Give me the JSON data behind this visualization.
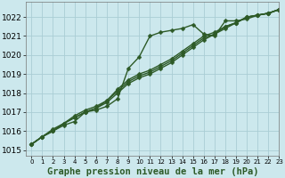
{
  "title": "Graphe pression niveau de la mer (hPa)",
  "background_color": "#cce8ed",
  "line_color": "#2d5a27",
  "grid_color": "#aacdd4",
  "xlim": [
    -0.5,
    23
  ],
  "ylim": [
    1014.7,
    1022.8
  ],
  "yticks": [
    1015,
    1016,
    1017,
    1018,
    1019,
    1020,
    1021,
    1022
  ],
  "xticks": [
    0,
    1,
    2,
    3,
    4,
    5,
    6,
    7,
    8,
    9,
    10,
    11,
    12,
    13,
    14,
    15,
    16,
    17,
    18,
    19,
    20,
    21,
    22,
    23
  ],
  "series": [
    [
      1015.3,
      1015.7,
      1016.0,
      1016.3,
      1016.5,
      1017.0,
      1017.1,
      1017.3,
      1017.7,
      1019.3,
      1019.9,
      1021.0,
      1021.2,
      1021.3,
      1021.4,
      1021.6,
      1021.1,
      1021.0,
      1021.8,
      1021.8,
      1021.9,
      1022.1,
      1022.2,
      1022.4
    ],
    [
      1015.3,
      1015.7,
      1016.0,
      1016.4,
      1016.7,
      1017.0,
      1017.2,
      1017.5,
      1018.0,
      1018.5,
      1018.8,
      1019.0,
      1019.3,
      1019.6,
      1020.0,
      1020.4,
      1020.8,
      1021.1,
      1021.4,
      1021.7,
      1022.0,
      1022.1,
      1022.2,
      1022.4
    ],
    [
      1015.3,
      1015.7,
      1016.0,
      1016.4,
      1016.7,
      1017.0,
      1017.2,
      1017.6,
      1018.1,
      1018.6,
      1018.9,
      1019.1,
      1019.4,
      1019.7,
      1020.1,
      1020.5,
      1020.9,
      1021.1,
      1021.5,
      1021.7,
      1022.0,
      1022.1,
      1022.2,
      1022.4
    ],
    [
      1015.3,
      1015.7,
      1016.1,
      1016.4,
      1016.8,
      1017.1,
      1017.3,
      1017.6,
      1018.2,
      1018.7,
      1019.0,
      1019.2,
      1019.5,
      1019.8,
      1020.2,
      1020.6,
      1021.0,
      1021.2,
      1021.5,
      1021.7,
      1022.0,
      1022.1,
      1022.2,
      1022.4
    ]
  ],
  "marker": "D",
  "marker_size": 2.5,
  "linewidth": 1.0,
  "xlabel_fontsize": 7.5,
  "tick_fontsize": 6.5,
  "xtick_fontsize": 5.0
}
